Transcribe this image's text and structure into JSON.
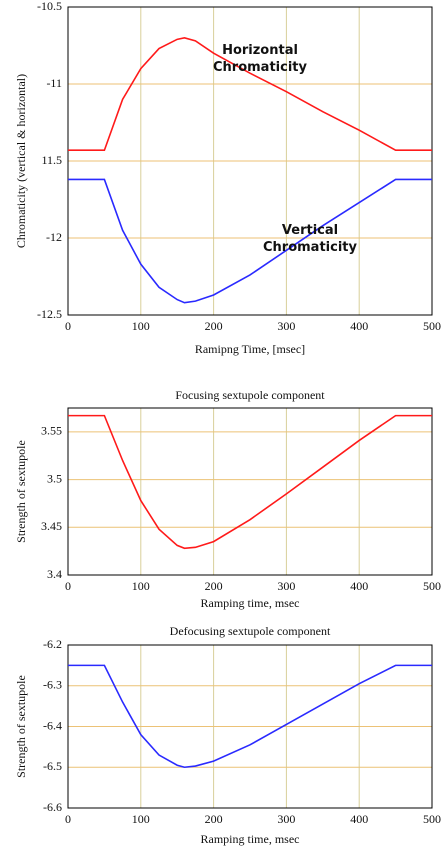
{
  "chart_data": [
    {
      "type": "line",
      "xlabel": "Ramipng Time, [msec]",
      "ylabel": "Chromaticity (vertical & horizontal)",
      "x": [
        0,
        50,
        75,
        100,
        125,
        150,
        160,
        175,
        200,
        250,
        300,
        350,
        400,
        450,
        500
      ],
      "series": [
        {
          "name": "Horizontal Chromaticity",
          "color": "#ff1a1a",
          "values": [
            -11.43,
            -11.43,
            -11.1,
            -10.9,
            -10.77,
            -10.71,
            -10.7,
            -10.72,
            -10.8,
            -10.93,
            -11.05,
            -11.18,
            -11.3,
            -11.43,
            -11.43
          ]
        },
        {
          "name": "Vertical Chromaticity",
          "color": "#2a2aff",
          "values": [
            -11.62,
            -11.62,
            -11.95,
            -12.17,
            -12.32,
            -12.4,
            -12.42,
            -12.41,
            -12.37,
            -12.24,
            -12.08,
            -11.92,
            -11.77,
            -11.62,
            -11.62
          ]
        }
      ],
      "xlim": [
        0,
        500
      ],
      "xticks": [
        0,
        100,
        200,
        300,
        400,
        500
      ],
      "ylim": [
        -12.5,
        -10.5
      ],
      "yticks": [
        -12.5,
        -12,
        {
          "value": -11.5,
          "label": "11.5"
        },
        -11,
        -10.5
      ],
      "grid": true
    },
    {
      "type": "line",
      "title": "Focusing sextupole component",
      "xlabel": "Ramping time, msec",
      "ylabel": "Strength of sextupole",
      "x": [
        0,
        50,
        75,
        100,
        125,
        150,
        160,
        175,
        200,
        250,
        300,
        350,
        400,
        450,
        500
      ],
      "series": [
        {
          "color": "#ff1a1a",
          "values": [
            3.567,
            3.567,
            3.52,
            3.478,
            3.448,
            3.431,
            3.428,
            3.429,
            3.435,
            3.458,
            3.485,
            3.513,
            3.541,
            3.567,
            3.567
          ]
        }
      ],
      "xlim": [
        0,
        500
      ],
      "xticks": [
        0,
        100,
        200,
        300,
        400,
        500
      ],
      "ylim": [
        3.4,
        3.575
      ],
      "yticks": [
        3.4,
        3.45,
        3.5,
        3.55
      ],
      "grid": true
    },
    {
      "type": "line",
      "title": "Defocusing sextupole component",
      "xlabel": "Ramping time, msec",
      "ylabel": "Strength of sextupole",
      "x": [
        0,
        50,
        75,
        100,
        125,
        150,
        160,
        175,
        200,
        250,
        300,
        350,
        400,
        450,
        500
      ],
      "series": [
        {
          "color": "#2a2aff",
          "values": [
            -6.25,
            -6.25,
            -6.34,
            -6.42,
            -6.47,
            -6.495,
            -6.5,
            -6.497,
            -6.485,
            -6.445,
            -6.395,
            -6.345,
            -6.295,
            -6.25,
            -6.25
          ]
        }
      ],
      "xlim": [
        0,
        500
      ],
      "xticks": [
        0,
        100,
        200,
        300,
        400,
        500
      ],
      "ylim": [
        -6.6,
        -6.2
      ],
      "yticks": [
        -6.6,
        -6.5,
        -6.4,
        -6.3,
        -6.2
      ],
      "grid": true
    }
  ]
}
